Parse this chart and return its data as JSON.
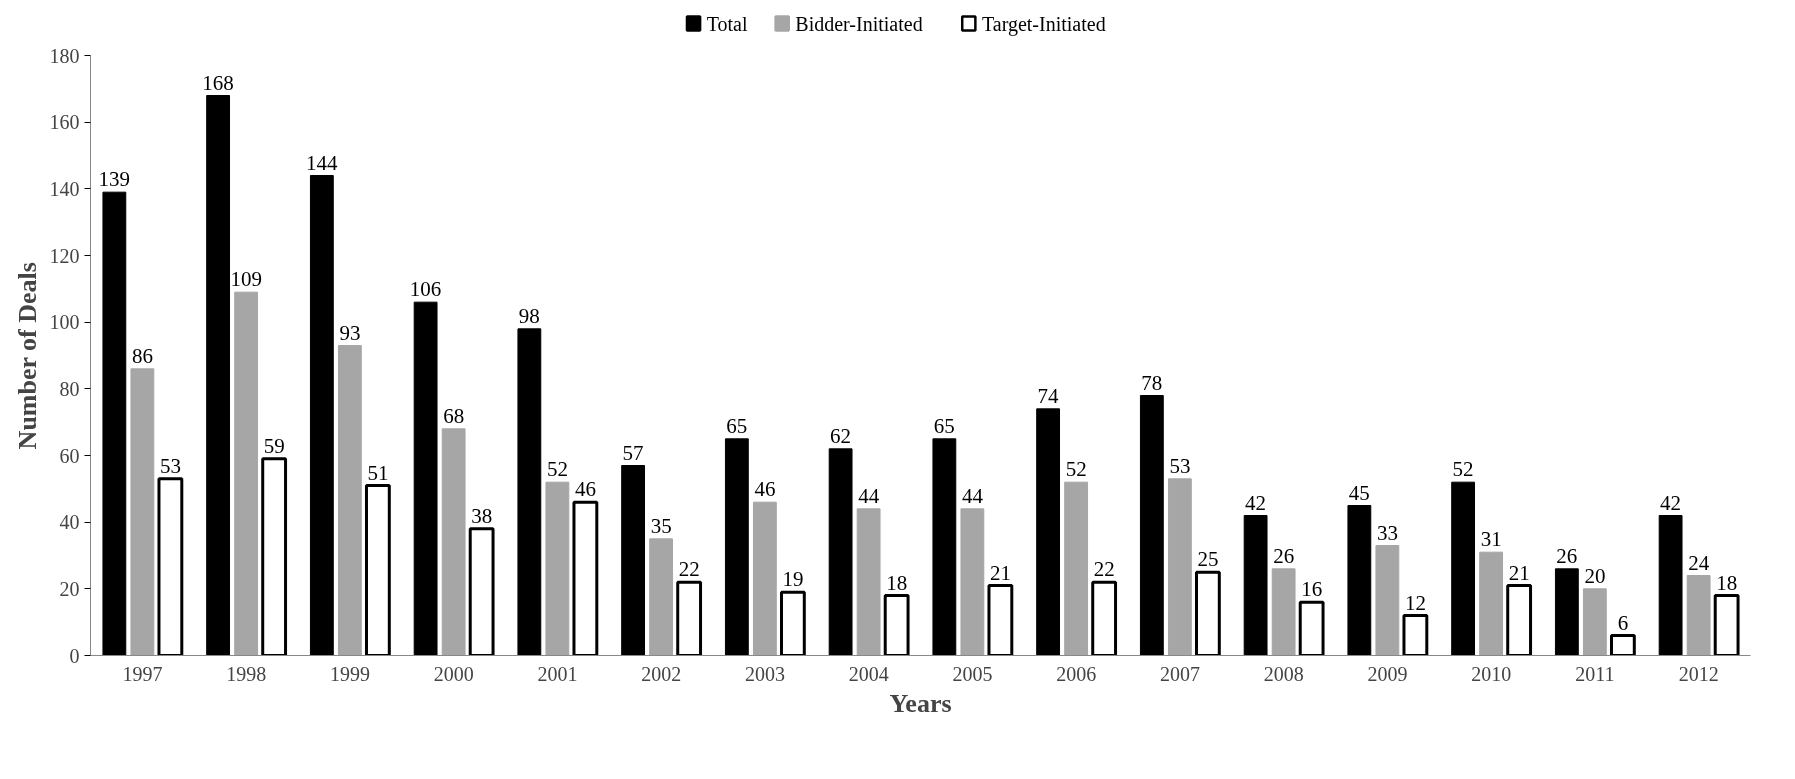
{
  "chart_data": {
    "type": "bar",
    "xlabel": "Years",
    "ylabel": "Number of Deals",
    "categories": [
      "1997",
      "1998",
      "1999",
      "2000",
      "2001",
      "2002",
      "2003",
      "2004",
      "2005",
      "2006",
      "2007",
      "2008",
      "2009",
      "2010",
      "2011",
      "2012"
    ],
    "series": [
      {
        "name": "Total",
        "color": "#000000",
        "values": [
          139,
          168,
          144,
          106,
          98,
          57,
          65,
          62,
          65,
          74,
          78,
          42,
          45,
          52,
          26,
          42
        ]
      },
      {
        "name": "Bidder-Initiated",
        "color": "#a6a6a6",
        "values": [
          86,
          109,
          93,
          68,
          52,
          35,
          46,
          44,
          44,
          52,
          53,
          26,
          33,
          31,
          20,
          24
        ]
      },
      {
        "name": "Target-Initiated",
        "color": "#ffffff",
        "values": [
          53,
          59,
          51,
          38,
          46,
          22,
          19,
          18,
          21,
          22,
          25,
          16,
          12,
          21,
          6,
          18
        ]
      }
    ],
    "ylim": [
      0,
      180
    ],
    "yticks": [
      0,
      20,
      40,
      60,
      80,
      100,
      120,
      140,
      160,
      180
    ],
    "grid": false,
    "legend": "top",
    "data_labels": true
  }
}
